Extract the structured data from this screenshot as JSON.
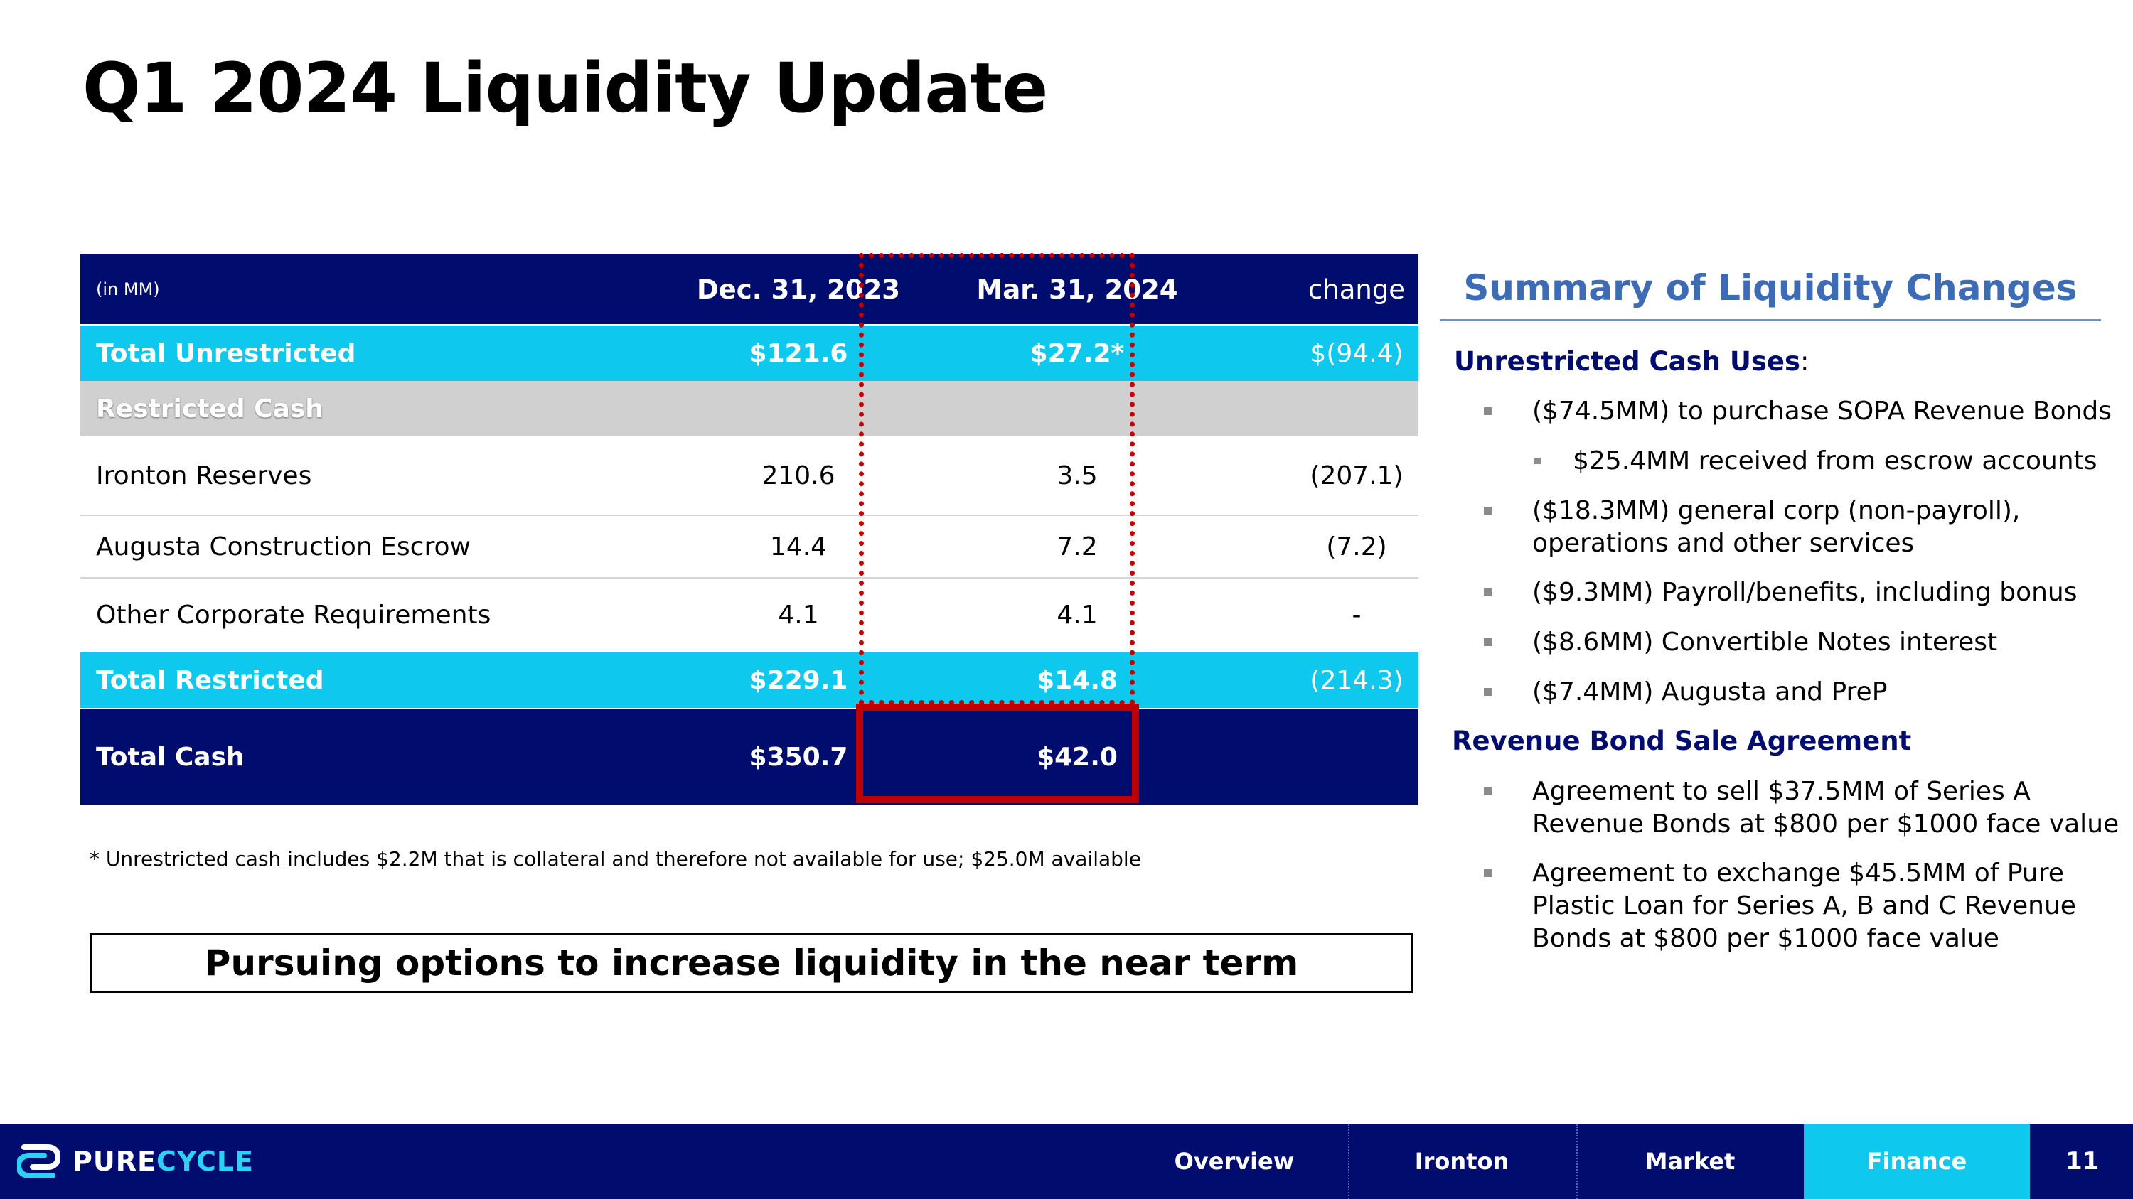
{
  "title": "Q1 2024 Liquidity Update",
  "table": {
    "header": {
      "unit": "(in MM)",
      "col_dec": "Dec. 31, 2023",
      "col_mar": "Mar. 31, 2024",
      "col_change": "change"
    },
    "total_unrestricted": {
      "label": "Total Unrestricted",
      "dec": "$121.6",
      "mar": "$27.2*",
      "change": "$(94.4)"
    },
    "restricted_cash": {
      "label": "Restricted Cash"
    },
    "rows": [
      {
        "label": "Ironton Reserves",
        "dec": "210.6",
        "mar": "3.5",
        "change": "(207.1)"
      },
      {
        "label": "Augusta Construction Escrow",
        "dec": "14.4",
        "mar": "7.2",
        "change": "(7.2)"
      },
      {
        "label": "Other Corporate Requirements",
        "dec": "4.1",
        "mar": "4.1",
        "change": "-"
      }
    ],
    "total_restricted": {
      "label": "Total Restricted",
      "dec": "$229.1",
      "mar": "$14.8",
      "change": "(214.3)"
    },
    "total_cash": {
      "label": "Total Cash",
      "dec": "$350.7",
      "mar": "$42.0"
    }
  },
  "footnote": "* Unrestricted cash includes $2.2M that is collateral and therefore not available for use; $25.0M available",
  "callout": "Pursuing options to increase liquidity in the near term",
  "summary": {
    "title": "Summary of Liquidity Changes",
    "uses_heading": "Unrestricted Cash Uses",
    "uses_colon": ":",
    "uses": [
      "($74.5MM) to purchase SOPA Revenue Bonds",
      "$25.4MM received from escrow accounts",
      "($18.3MM) general corp (non-payroll),",
      "operations and other services",
      "($9.3MM) Payroll/benefits, including bonus",
      "($8.6MM) Convertible Notes interest",
      "($7.4MM) Augusta and PreP"
    ],
    "bond_heading": "Revenue Bond Sale Agreement",
    "bond": [
      "Agreement to sell $37.5MM of Series A",
      "Revenue Bonds at $800 per $1000 face value",
      "Agreement to exchange $45.5MM of Pure",
      "Plastic Loan for Series A, B and C Revenue",
      "Bonds at $800 per $1000 face value"
    ]
  },
  "footer": {
    "logo_pure": "PURE",
    "logo_cycle": "CYCLE",
    "nav": [
      "Overview",
      "Ironton",
      "Market",
      "Finance"
    ],
    "active": "Finance",
    "page": "11"
  },
  "colors": {
    "navy": "#000c6e",
    "cyan": "#0ec8ee",
    "red": "#c00000",
    "grey": "#d0d0d0",
    "summary_blue": "#3d6cb5"
  }
}
